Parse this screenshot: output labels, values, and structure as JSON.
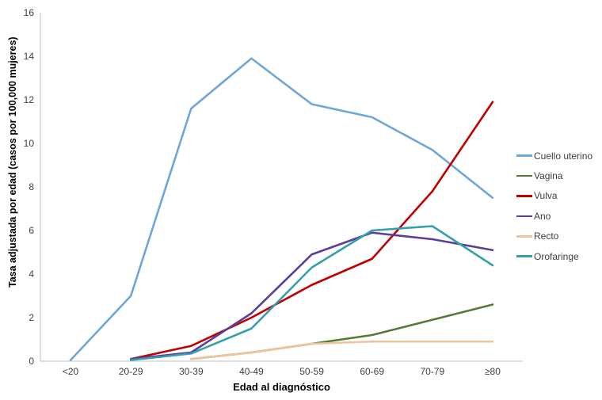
{
  "chart_data": {
    "type": "line",
    "title": "",
    "xlabel": "Edad al diagnóstico",
    "ylabel": "Tasa adjustada por edad (casos por 100,000 mujeres)",
    "categories": [
      "<20",
      "20-29",
      "30-39",
      "40-49",
      "50-59",
      "60-69",
      "70-79",
      "≥80"
    ],
    "y_ticks": [
      0,
      2,
      4,
      6,
      8,
      10,
      12,
      14,
      16
    ],
    "ylim": [
      0,
      16
    ],
    "grid": false,
    "legend_position": "right",
    "axis_color": "#bfbfbf",
    "tick_label_color": "#3f3f3f",
    "series": [
      {
        "name": "Cuello uterino",
        "color": "#6ea6d9",
        "values": [
          0.05,
          3.0,
          11.6,
          13.9,
          11.8,
          11.2,
          9.7,
          7.5
        ]
      },
      {
        "name": "Vagina",
        "color": "#567a35",
        "values": [
          null,
          null,
          0.1,
          0.4,
          0.8,
          1.2,
          1.9,
          2.6
        ]
      },
      {
        "name": "Vulva",
        "color": "#c00000",
        "values": [
          null,
          0.1,
          0.7,
          2.0,
          3.5,
          4.7,
          7.8,
          11.9
        ]
      },
      {
        "name": "Ano",
        "color": "#5c3d99",
        "values": [
          null,
          0.1,
          0.4,
          2.2,
          4.9,
          5.9,
          5.6,
          5.1
        ]
      },
      {
        "name": "Recto",
        "color": "#efc49c",
        "values": [
          null,
          null,
          0.1,
          0.4,
          0.8,
          0.9,
          0.9,
          0.9
        ]
      },
      {
        "name": "Orofaringe",
        "color": "#35a0ac",
        "values": [
          null,
          0.05,
          0.35,
          1.5,
          4.3,
          6.0,
          6.2,
          4.4
        ]
      }
    ]
  }
}
